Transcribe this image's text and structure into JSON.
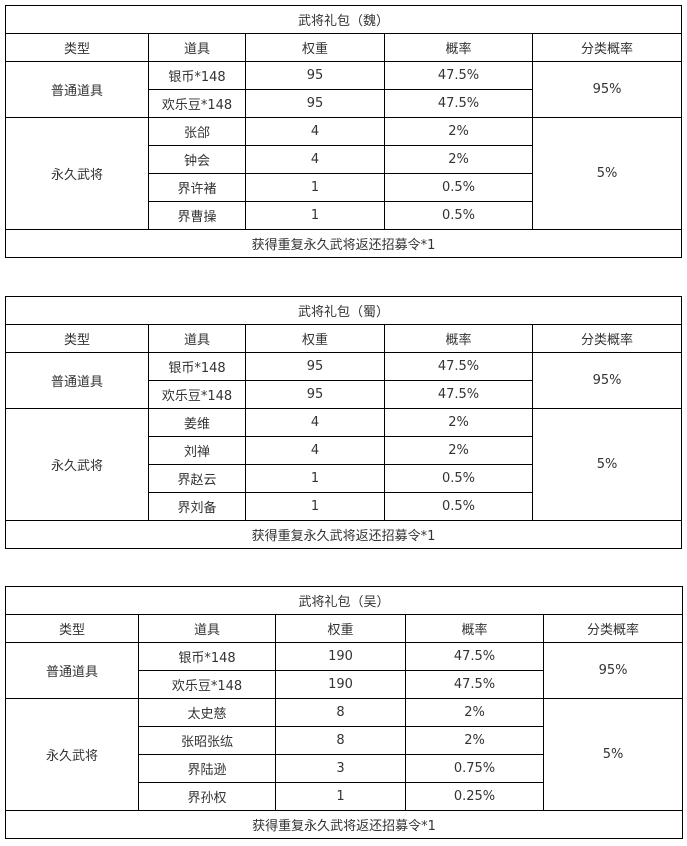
{
  "tables": [
    {
      "title": "武将礼包（魏）",
      "headers": [
        "类型",
        "道具",
        "权重",
        "概率",
        "分类概率"
      ],
      "groups": [
        {
          "type": "普通道具",
          "category_prob": "95%",
          "items": [
            [
              "银币*148",
              "95",
              "47.5%"
            ],
            [
              "欢乐豆*148",
              "95",
              "47.5%"
            ]
          ]
        },
        {
          "type": "永久武将",
          "category_prob": "5%",
          "items": [
            [
              "张郃",
              "4",
              "2%"
            ],
            [
              "钟会",
              "4",
              "2%"
            ],
            [
              "界许褚",
              "1",
              "0.5%"
            ],
            [
              "界曹操",
              "1",
              "0.5%"
            ]
          ]
        }
      ],
      "footer": "获得重复永久武将返还招募令*1"
    },
    {
      "title": "武将礼包（蜀）",
      "headers": [
        "类型",
        "道具",
        "权重",
        "概率",
        "分类概率"
      ],
      "groups": [
        {
          "type": "普通道具",
          "category_prob": "95%",
          "items": [
            [
              "银币*148",
              "95",
              "47.5%"
            ],
            [
              "欢乐豆*148",
              "95",
              "47.5%"
            ]
          ]
        },
        {
          "type": "永久武将",
          "category_prob": "5%",
          "items": [
            [
              "姜维",
              "4",
              "2%"
            ],
            [
              "刘禅",
              "4",
              "2%"
            ],
            [
              "界赵云",
              "1",
              "0.5%"
            ],
            [
              "界刘备",
              "1",
              "0.5%"
            ]
          ]
        }
      ],
      "footer": "获得重复永久武将返还招募令*1"
    },
    {
      "title": "武将礼包（吴）",
      "headers": [
        "类型",
        "道具",
        "权重",
        "概率",
        "分类概率"
      ],
      "groups": [
        {
          "type": "普通道具",
          "category_prob": "95%",
          "items": [
            [
              "银币*148",
              "190",
              "47.5%"
            ],
            [
              "欢乐豆*148",
              "190",
              "47.5%"
            ]
          ]
        },
        {
          "type": "永久武将",
          "category_prob": "5%",
          "items": [
            [
              "太史慈",
              "8",
              "2%"
            ],
            [
              "张昭张纮",
              "8",
              "2%"
            ],
            [
              "界陆逊",
              "3",
              "0.75%"
            ],
            [
              "界孙权",
              "1",
              "0.25%"
            ]
          ]
        }
      ],
      "footer": "获得重复永久武将返还招募令*1"
    }
  ]
}
